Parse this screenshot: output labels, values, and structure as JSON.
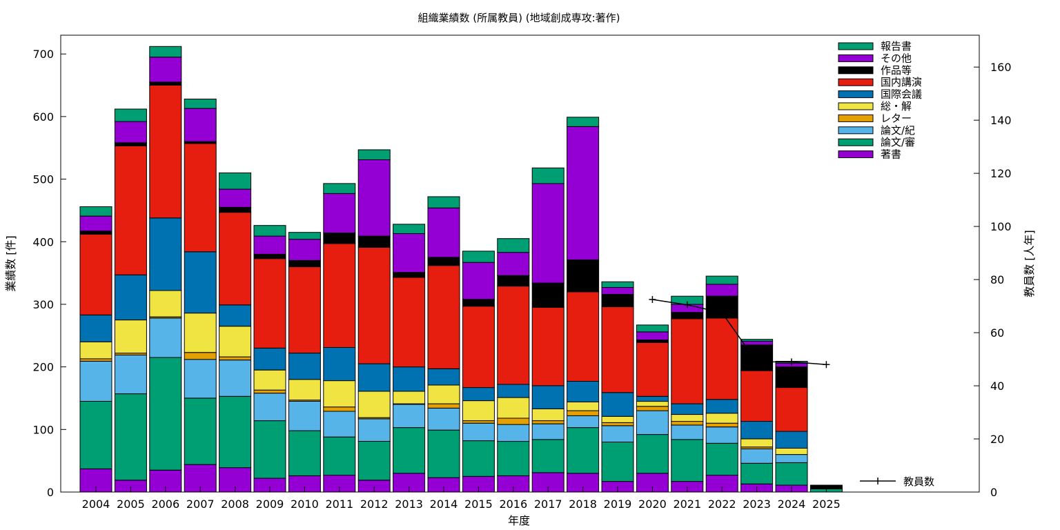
{
  "chart_data": {
    "type": "bar",
    "stacked": true,
    "title": "組織業績数 (所属教員) (地域創成専攻:著作)",
    "xlabel": "年度",
    "ylabel": "業績数 [件]",
    "y2label": "教員数 [人年]",
    "ylim": [
      0,
      730
    ],
    "y2lim": [
      0,
      172
    ],
    "yticks": [
      0,
      100,
      200,
      300,
      400,
      500,
      600,
      700
    ],
    "y2ticks": [
      0,
      20,
      40,
      60,
      80,
      100,
      120,
      140,
      160
    ],
    "grid": false,
    "legend_position": "top-right",
    "categories": [
      "2004",
      "2005",
      "2006",
      "2007",
      "2008",
      "2009",
      "2010",
      "2011",
      "2012",
      "2013",
      "2014",
      "2015",
      "2016",
      "2017",
      "2018",
      "2019",
      "2020",
      "2021",
      "2022",
      "2023",
      "2024",
      "2025"
    ],
    "series": [
      {
        "name": "著書",
        "color": "#9400d3",
        "values": [
          37,
          19,
          35,
          44,
          39,
          22,
          26,
          27,
          19,
          30,
          23,
          25,
          26,
          31,
          30,
          17,
          30,
          17,
          27,
          13,
          11,
          0
        ]
      },
      {
        "name": "論文/審",
        "color": "#009e73",
        "values": [
          108,
          138,
          180,
          106,
          114,
          92,
          72,
          61,
          62,
          73,
          76,
          57,
          55,
          53,
          73,
          63,
          62,
          67,
          51,
          33,
          36,
          5
        ]
      },
      {
        "name": "論文/紀",
        "color": "#56b4e9",
        "values": [
          64,
          62,
          63,
          62,
          58,
          44,
          47,
          41,
          36,
          37,
          35,
          28,
          27,
          25,
          19,
          26,
          38,
          23,
          26,
          23,
          13,
          0
        ]
      },
      {
        "name": "レター",
        "color": "#e69f00",
        "values": [
          4,
          3,
          2,
          11,
          5,
          5,
          2,
          7,
          2,
          1,
          7,
          4,
          10,
          5,
          8,
          5,
          7,
          6,
          6,
          3,
          0,
          0
        ]
      },
      {
        "name": "総・解",
        "color": "#f0e442",
        "values": [
          27,
          53,
          42,
          63,
          49,
          32,
          33,
          42,
          42,
          20,
          30,
          32,
          33,
          19,
          14,
          10,
          8,
          11,
          16,
          13,
          10,
          0
        ]
      },
      {
        "name": "国際会議",
        "color": "#0072b2",
        "values": [
          43,
          72,
          116,
          98,
          34,
          35,
          42,
          53,
          44,
          39,
          26,
          21,
          21,
          37,
          33,
          38,
          8,
          17,
          22,
          28,
          27,
          0
        ]
      },
      {
        "name": "国内講演",
        "color": "#e51e10",
        "values": [
          129,
          206,
          212,
          173,
          148,
          143,
          138,
          166,
          186,
          143,
          165,
          130,
          157,
          125,
          143,
          137,
          86,
          136,
          130,
          81,
          70,
          0
        ]
      },
      {
        "name": "作品等",
        "color": "#000000",
        "values": [
          5,
          5,
          5,
          3,
          8,
          7,
          10,
          17,
          18,
          8,
          13,
          11,
          17,
          39,
          51,
          20,
          4,
          10,
          35,
          41,
          33,
          6
        ]
      },
      {
        "name": "その他",
        "color": "#9400d3",
        "values": [
          24,
          34,
          40,
          53,
          29,
          29,
          34,
          63,
          122,
          62,
          79,
          59,
          37,
          159,
          213,
          11,
          13,
          13,
          19,
          6,
          6,
          0
        ]
      },
      {
        "name": "報告書",
        "color": "#009e73",
        "values": [
          15,
          20,
          17,
          15,
          26,
          17,
          11,
          16,
          16,
          15,
          18,
          18,
          22,
          25,
          15,
          9,
          11,
          13,
          13,
          3,
          3,
          0
        ]
      }
    ],
    "line_series": {
      "name": "教員数",
      "axis": "y2",
      "x": [
        "2020",
        "2021",
        "2022",
        "2023",
        "2024",
        "2025"
      ],
      "values": [
        72.5,
        70.5,
        67.5,
        49,
        49,
        48
      ]
    }
  }
}
